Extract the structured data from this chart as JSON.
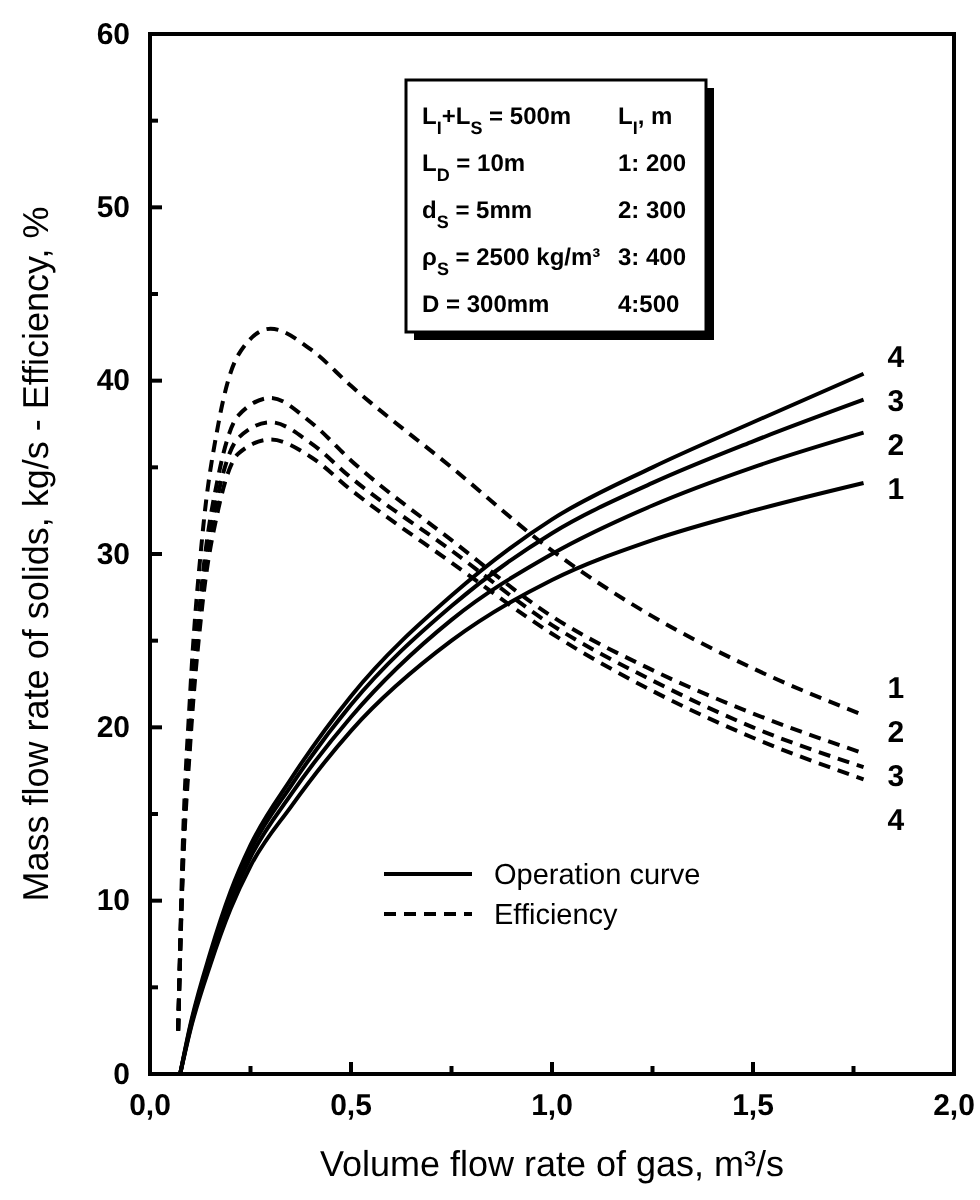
{
  "chart_data": {
    "type": "line",
    "xlabel": "Volume flow rate of gas, m³/s",
    "ylabel": "Mass flow rate of solids, kg/s - Efficiency, %",
    "xlim": [
      0,
      2.0
    ],
    "ylim": [
      0,
      60
    ],
    "xticks": [
      {
        "value": 0,
        "label": "0,0"
      },
      {
        "value": 0.25,
        "label": null
      },
      {
        "value": 0.5,
        "label": "0,5"
      },
      {
        "value": 0.75,
        "label": null
      },
      {
        "value": 1.0,
        "label": "1,0"
      },
      {
        "value": 1.25,
        "label": null
      },
      {
        "value": 1.5,
        "label": "1,5"
      },
      {
        "value": 1.75,
        "label": null
      },
      {
        "value": 2.0,
        "label": "2,0"
      }
    ],
    "yticks": [
      0,
      {
        "value": 5,
        "label": null
      },
      10,
      {
        "value": 15,
        "label": null
      },
      20,
      {
        "value": 25,
        "label": null
      },
      30,
      {
        "value": 35,
        "label": null
      },
      40,
      {
        "value": 45,
        "label": null
      },
      50,
      {
        "value": 55,
        "label": null
      },
      60
    ],
    "grid": false,
    "legend": "bottom",
    "marker": "none",
    "series": [
      {
        "name": "Operation curve",
        "color": "#000000",
        "line_style": "solid",
        "x": [
          0.075,
          0.1,
          0.15,
          0.2,
          0.25,
          0.35,
          0.5,
          0.75,
          1.0,
          1.25,
          1.5,
          1.775
        ],
        "values": [
          0,
          2.5,
          6.3,
          9.5,
          12.0,
          15.4,
          19.8,
          25.0,
          28.5,
          30.8,
          32.5,
          34.1
        ]
      },
      {
        "color": "#000000",
        "line_style": "solid",
        "x": [
          0.075,
          0.1,
          0.15,
          0.2,
          0.25,
          0.35,
          0.5,
          0.75,
          1.0,
          1.25,
          1.5,
          1.775
        ],
        "values": [
          0,
          2.6,
          6.6,
          9.9,
          12.5,
          16.1,
          20.6,
          26.2,
          30.0,
          32.8,
          35.0,
          37.0
        ]
      },
      {
        "color": "#000000",
        "line_style": "solid",
        "x": [
          0.075,
          0.1,
          0.15,
          0.2,
          0.25,
          0.35,
          0.5,
          0.75,
          1.0,
          1.25,
          1.5,
          1.775
        ],
        "values": [
          0,
          2.7,
          6.8,
          10.2,
          12.9,
          16.6,
          21.3,
          27.0,
          31.2,
          34.1,
          36.5,
          38.9
        ]
      },
      {
        "color": "#000000",
        "line_style": "solid",
        "x": [
          0.075,
          0.1,
          0.15,
          0.2,
          0.25,
          0.35,
          0.5,
          0.75,
          1.0,
          1.25,
          1.5,
          1.775
        ],
        "values": [
          0,
          2.8,
          7.0,
          10.5,
          13.2,
          17.0,
          21.8,
          27.6,
          32.0,
          35.0,
          37.6,
          40.4
        ]
      },
      {
        "name": "Efficiency",
        "color": "#000000",
        "line_style": "dashed",
        "x": [
          0.07,
          0.08,
          0.1,
          0.13,
          0.17,
          0.22,
          0.3,
          0.4,
          0.5,
          0.75,
          1.0,
          1.25,
          1.5,
          1.775
        ],
        "values": [
          2.5,
          12,
          22,
          31,
          37.5,
          41.5,
          43.0,
          41.8,
          39.7,
          35.0,
          30.2,
          26.4,
          23.4,
          20.7
        ]
      },
      {
        "color": "#000000",
        "line_style": "dashed",
        "x": [
          0.07,
          0.08,
          0.1,
          0.13,
          0.17,
          0.22,
          0.3,
          0.4,
          0.5,
          0.75,
          1.0,
          1.25,
          1.5,
          1.775
        ],
        "values": [
          2.5,
          11,
          20,
          28.5,
          34.5,
          38.0,
          39.0,
          37.6,
          35.4,
          30.8,
          26.4,
          23.3,
          20.8,
          18.5
        ]
      },
      {
        "color": "#000000",
        "line_style": "dashed",
        "x": [
          0.07,
          0.08,
          0.1,
          0.13,
          0.17,
          0.22,
          0.3,
          0.4,
          0.5,
          0.75,
          1.0,
          1.25,
          1.5,
          1.775
        ],
        "values": [
          2.5,
          11,
          19.5,
          27.8,
          33.5,
          36.7,
          37.6,
          36.4,
          34.4,
          30.2,
          25.9,
          22.7,
          20.0,
          17.7
        ]
      },
      {
        "color": "#000000",
        "line_style": "dashed",
        "x": [
          0.07,
          0.08,
          0.1,
          0.13,
          0.17,
          0.22,
          0.3,
          0.4,
          0.5,
          0.75,
          1.0,
          1.25,
          1.5,
          1.775
        ],
        "values": [
          2.5,
          10.5,
          19,
          27,
          32.6,
          35.8,
          36.6,
          35.6,
          33.7,
          29.5,
          25.4,
          22.1,
          19.4,
          17.0
        ]
      }
    ],
    "annotations": [
      "L$_{I}$+L$_{S}$ = 500m",
      "L$_{D}$ = 10m",
      "d$_{S}$ = 5mm",
      "ρ$_{S}$ = 2500 kg/m³",
      "D = 300mm",
      "L$_{I}$, m",
      "1: 200",
      "2: 300",
      "3: 400",
      "4:500",
      "1",
      "2",
      "3",
      "4",
      "1",
      "2",
      "3",
      "4"
    ]
  }
}
